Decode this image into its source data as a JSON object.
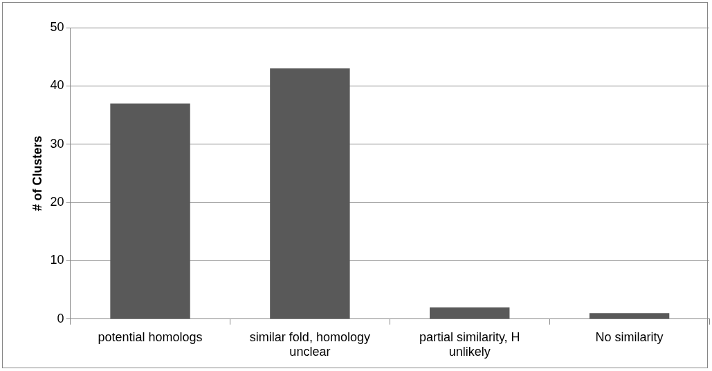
{
  "chart_data": {
    "type": "bar",
    "ylabel": "# of Clusters",
    "categories": [
      "potential homologs",
      "similar fold, homology unclear",
      "partial similarity, H unlikely",
      "No similarity"
    ],
    "values": [
      37,
      43,
      2,
      1
    ],
    "color": "#595959",
    "ylim": [
      0,
      50
    ],
    "yticks": [
      0,
      10,
      20,
      30,
      40,
      50
    ],
    "grid": "y",
    "legend": false
  }
}
